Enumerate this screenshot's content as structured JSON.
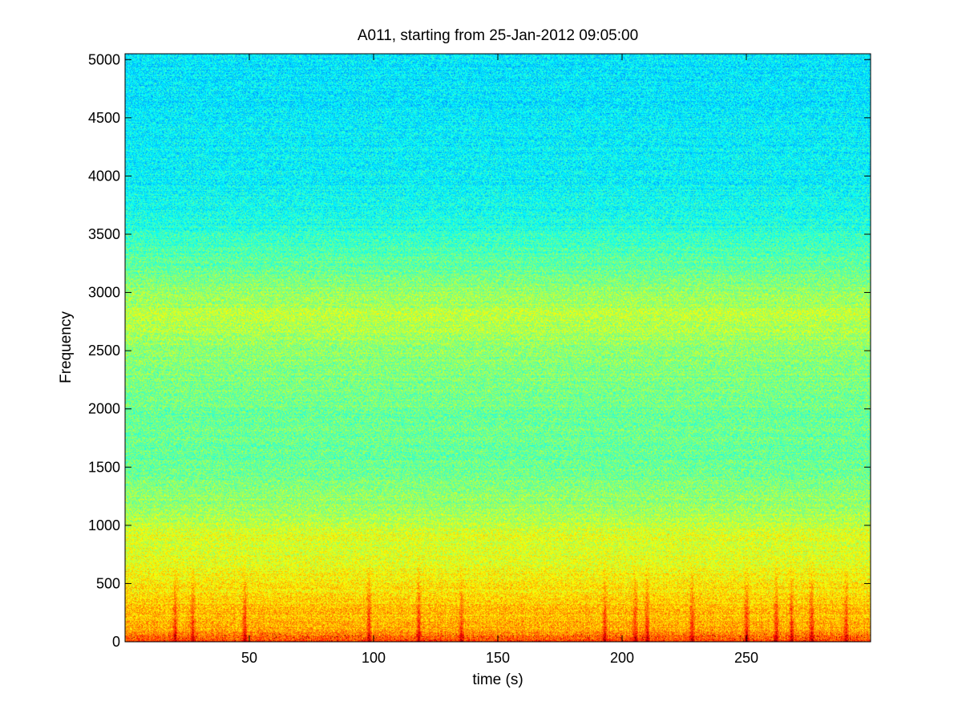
{
  "chart_data": {
    "type": "heatmap",
    "title": "A011, starting from 25-Jan-2012 09:05:00",
    "xlabel": "time (s)",
    "ylabel": "Frequency",
    "xlim": [
      0,
      300
    ],
    "ylim": [
      0,
      5050
    ],
    "x_ticks": [
      50,
      100,
      150,
      200,
      250
    ],
    "y_ticks": [
      0,
      500,
      1000,
      1500,
      2000,
      2500,
      3000,
      3500,
      4000,
      4500,
      5000
    ],
    "x_tick_labels": [
      "50",
      "100",
      "150",
      "200",
      "250"
    ],
    "y_tick_labels": [
      "0",
      "500",
      "1000",
      "1500",
      "2000",
      "2500",
      "3000",
      "3500",
      "4000",
      "4500",
      "5000"
    ],
    "colormap": "jet",
    "grid": false,
    "legend": "none",
    "intensity_profile": {
      "frequency": [
        0,
        100,
        300,
        500,
        700,
        850,
        900,
        1000,
        1200,
        1500,
        2000,
        2500,
        2800,
        3000,
        3300,
        3600,
        4000,
        4500,
        5050
      ],
      "level": [
        0.82,
        0.72,
        0.68,
        0.64,
        0.6,
        0.58,
        0.6,
        0.56,
        0.52,
        0.48,
        0.48,
        0.52,
        0.56,
        0.52,
        0.46,
        0.4,
        0.37,
        0.36,
        0.35
      ]
    },
    "transient_bursts_s": [
      20,
      27,
      48,
      98,
      118,
      135,
      193,
      205,
      210,
      228,
      250,
      262,
      268,
      276,
      290
    ]
  }
}
